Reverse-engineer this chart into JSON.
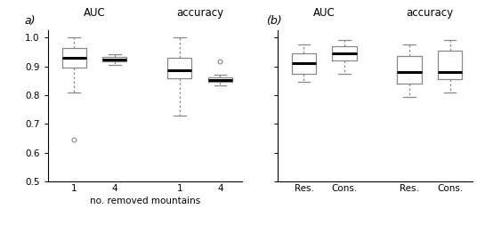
{
  "panel_a": {
    "title_auc": "AUC",
    "title_acc": "accuracy",
    "xlabel": "no. removed mountains",
    "ylim": [
      0.5,
      1.025
    ],
    "yticks": [
      0.5,
      0.6,
      0.7,
      0.8,
      0.9,
      1.0
    ],
    "xtick_labels": [
      "1",
      "4",
      "1",
      "4"
    ],
    "boxes": [
      {
        "whislo": 0.81,
        "q1": 0.895,
        "med": 0.93,
        "q3": 0.965,
        "whishi": 1.0,
        "fliers": [
          0.645
        ]
      },
      {
        "whislo": 0.905,
        "q1": 0.916,
        "med": 0.923,
        "q3": 0.932,
        "whishi": 0.943,
        "fliers": []
      },
      {
        "whislo": 0.73,
        "q1": 0.86,
        "med": 0.888,
        "q3": 0.93,
        "whishi": 1.0,
        "fliers": []
      },
      {
        "whislo": 0.835,
        "q1": 0.845,
        "med": 0.853,
        "q3": 0.863,
        "whishi": 0.872,
        "fliers": [
          0.918
        ]
      }
    ],
    "positions": [
      1,
      2,
      3.6,
      4.6
    ],
    "group_centers": [
      1.5,
      4.1
    ],
    "xlim": [
      0.35,
      5.15
    ]
  },
  "panel_b": {
    "title_auc": "AUC",
    "title_acc": "accuracy",
    "xtick_labels": [
      "Res.",
      "Cons.",
      "Res.",
      "Cons."
    ],
    "boxes": [
      {
        "whislo": 0.845,
        "q1": 0.875,
        "med": 0.91,
        "q3": 0.945,
        "whishi": 0.975,
        "fliers": []
      },
      {
        "whislo": 0.875,
        "q1": 0.92,
        "med": 0.945,
        "q3": 0.97,
        "whishi": 0.992,
        "fliers": []
      },
      {
        "whislo": 0.795,
        "q1": 0.84,
        "med": 0.88,
        "q3": 0.935,
        "whishi": 0.975,
        "fliers": []
      },
      {
        "whislo": 0.81,
        "q1": 0.855,
        "med": 0.88,
        "q3": 0.955,
        "whishi": 0.992,
        "fliers": []
      }
    ],
    "positions": [
      1,
      2,
      3.6,
      4.6
    ],
    "group_centers": [
      1.5,
      4.1
    ],
    "xlim": [
      0.35,
      5.15
    ]
  },
  "box_width": 0.6,
  "linecolor": "#888888",
  "mediancolor": "#000000",
  "fliercolor": "#888888",
  "label_a": "a)",
  "label_b": "(b)"
}
